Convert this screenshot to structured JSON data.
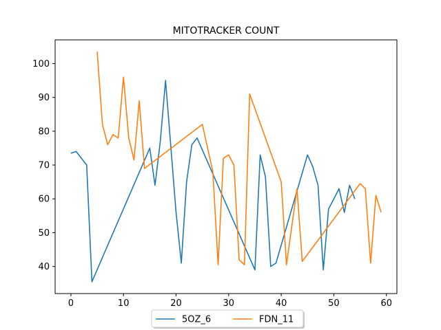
{
  "chart_data": {
    "type": "line",
    "title": "MITOTRACKER COUNT",
    "xlabel": "",
    "ylabel": "",
    "xlim": [
      -3,
      62
    ],
    "ylim": [
      32,
      107
    ],
    "xticks": [
      0,
      10,
      20,
      30,
      40,
      50,
      60
    ],
    "yticks": [
      40,
      50,
      60,
      70,
      80,
      90,
      100
    ],
    "grid": false,
    "legend_position": "bottom-center",
    "series": [
      {
        "name": "5OZ_6",
        "color": "#1f77b4",
        "x": [
          0,
          1,
          3,
          4,
          15,
          16,
          17,
          18,
          20,
          21,
          22,
          23,
          24,
          35,
          36,
          37,
          38,
          39,
          42,
          45,
          46,
          47,
          48,
          49,
          51,
          52,
          53,
          54
        ],
        "y": [
          73.5,
          74,
          70,
          35.5,
          75,
          64,
          77,
          95,
          56,
          41,
          65,
          76,
          78,
          39,
          73,
          66.5,
          40,
          41,
          57,
          73,
          69.5,
          64,
          39,
          57,
          63,
          56,
          64,
          60
        ]
      },
      {
        "name": "FDN_11",
        "color": "#ff7f0e",
        "x": [
          5,
          6,
          7,
          8,
          9,
          10,
          11,
          12,
          13,
          14,
          25,
          27,
          28,
          29,
          30,
          31,
          32,
          33,
          34,
          40,
          41,
          43,
          44,
          55,
          56,
          57,
          58,
          59
        ],
        "y": [
          103.5,
          82,
          76,
          79,
          78,
          96,
          78,
          71.5,
          89,
          69,
          82,
          68,
          40.5,
          72,
          73,
          70,
          42,
          40.5,
          91,
          65,
          40.5,
          63,
          41.5,
          64.5,
          63,
          41,
          61,
          56
        ]
      }
    ]
  }
}
